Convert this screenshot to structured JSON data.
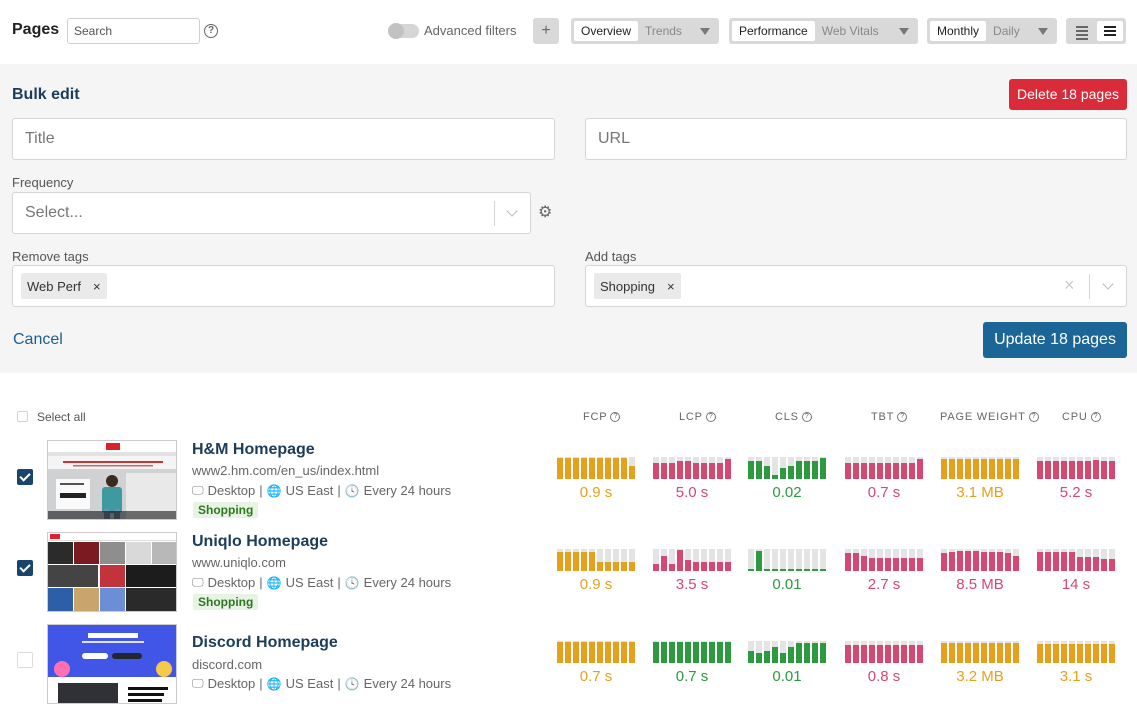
{
  "header": {
    "title": "Pages",
    "search_placeholder": "Search",
    "help": "?",
    "advanced_filters_label": "Advanced filters",
    "add_label": "+",
    "view_tabs": [
      "Overview",
      "Trends"
    ],
    "metric_tabs": [
      "Performance",
      "Web Vitals"
    ],
    "interval_tabs": [
      "Monthly",
      "Daily"
    ]
  },
  "bulk_edit": {
    "title": "Bulk edit",
    "delete_label": "Delete 18 pages",
    "title_placeholder": "Title",
    "url_placeholder": "URL",
    "frequency_label": "Frequency",
    "frequency_placeholder": "Select...",
    "remove_tags_label": "Remove tags",
    "remove_tags": [
      "Web Perf"
    ],
    "add_tags_label": "Add tags",
    "add_tags": [
      "Shopping"
    ],
    "cancel_label": "Cancel",
    "update_label": "Update 18 pages"
  },
  "list": {
    "select_all_label": "Select all",
    "columns": [
      "FCP",
      "LCP",
      "CLS",
      "TBT",
      "PAGE WEIGHT",
      "CPU"
    ],
    "pages": [
      {
        "name": "H&M Homepage",
        "url": "www2.hm.com/en_us/index.html",
        "device": "Desktop",
        "location": "US East",
        "frequency": "Every 24 hours",
        "tag": "Shopping",
        "checked": true,
        "metrics": [
          {
            "value": "0.9 s",
            "color": "#e5a11d",
            "fill": [
              0.95,
              0.95,
              0.95,
              0.95,
              0.95,
              0.95,
              0.95,
              0.95,
              0.95,
              0.6
            ]
          },
          {
            "value": "5.0 s",
            "color": "#d54872",
            "fill": [
              0.75,
              0.75,
              0.75,
              0.8,
              0.8,
              0.75,
              0.75,
              0.75,
              0.75,
              0.9
            ]
          },
          {
            "value": "0.02",
            "color": "#2d9a3f",
            "fill": [
              0.8,
              0.8,
              0.6,
              0.2,
              0.5,
              0.6,
              0.8,
              0.8,
              0.8,
              0.95
            ]
          },
          {
            "value": "0.7 s",
            "color": "#d54872",
            "fill": [
              0.75,
              0.75,
              0.75,
              0.75,
              0.75,
              0.75,
              0.75,
              0.75,
              0.75,
              0.9
            ]
          },
          {
            "value": "3.1 MB",
            "color": "#e5a11d",
            "fill": [
              0.9,
              0.9,
              0.9,
              0.9,
              0.9,
              0.9,
              0.9,
              0.9,
              0.9,
              0.9
            ]
          },
          {
            "value": "5.2 s",
            "color": "#d54872",
            "fill": [
              0.8,
              0.8,
              0.8,
              0.8,
              0.8,
              0.8,
              0.8,
              0.85,
              0.8,
              0.8
            ]
          }
        ]
      },
      {
        "name": "Uniqlo Homepage",
        "url": "www.uniqlo.com",
        "device": "Desktop",
        "location": "US East",
        "frequency": "Every 24 hours",
        "tag": "Shopping",
        "checked": true,
        "metrics": [
          {
            "value": "0.9 s",
            "color": "#e5a11d",
            "fill": [
              0.85,
              0.85,
              0.85,
              0.85,
              0.85,
              0.4,
              0.4,
              0.4,
              0.4,
              0.4
            ]
          },
          {
            "value": "3.5 s",
            "color": "#d54872",
            "fill": [
              0.3,
              0.7,
              0.3,
              0.95,
              0.5,
              0.4,
              0.4,
              0.4,
              0.4,
              0.4
            ]
          },
          {
            "value": "0.01",
            "color": "#2d9a3f",
            "fill": [
              0.1,
              0.9,
              0.1,
              0.1,
              0.1,
              0.1,
              0.1,
              0.1,
              0.1,
              0.1
            ]
          },
          {
            "value": "2.7 s",
            "color": "#d54872",
            "fill": [
              0.8,
              0.8,
              0.7,
              0.6,
              0.6,
              0.6,
              0.6,
              0.6,
              0.6,
              0.6
            ]
          },
          {
            "value": "8.5 MB",
            "color": "#d54872",
            "fill": [
              0.8,
              0.85,
              0.9,
              0.9,
              0.9,
              0.85,
              0.85,
              0.85,
              0.8,
              0.7
            ]
          },
          {
            "value": "14 s",
            "color": "#d54872",
            "fill": [
              0.85,
              0.85,
              0.85,
              0.85,
              0.85,
              0.65,
              0.65,
              0.65,
              0.55,
              0.55
            ]
          }
        ]
      },
      {
        "name": "Discord Homepage",
        "url": "discord.com",
        "device": "Desktop",
        "location": "US East",
        "frequency": "Every 24 hours",
        "tag": "",
        "checked": false,
        "metrics": [
          {
            "value": "0.7 s",
            "color": "#e5a11d",
            "fill": [
              0.95,
              0.95,
              0.95,
              0.95,
              0.95,
              0.95,
              0.95,
              0.95,
              0.95,
              0.95
            ]
          },
          {
            "value": "0.7 s",
            "color": "#2d9a3f",
            "fill": [
              0.95,
              0.95,
              0.95,
              0.95,
              0.95,
              0.95,
              0.95,
              0.95,
              0.95,
              0.95
            ]
          },
          {
            "value": "0.01",
            "color": "#2d9a3f",
            "fill": [
              0.55,
              0.45,
              0.55,
              0.75,
              0.45,
              0.75,
              0.9,
              0.9,
              0.9,
              0.9
            ]
          },
          {
            "value": "0.8 s",
            "color": "#d54872",
            "fill": [
              0.8,
              0.8,
              0.8,
              0.8,
              0.8,
              0.8,
              0.8,
              0.8,
              0.8,
              0.8
            ]
          },
          {
            "value": "3.2 MB",
            "color": "#e5a11d",
            "fill": [
              0.9,
              0.9,
              0.9,
              0.9,
              0.9,
              0.9,
              0.9,
              0.9,
              0.9,
              0.9
            ]
          },
          {
            "value": "3.1 s",
            "color": "#e5a11d",
            "fill": [
              0.85,
              0.85,
              0.85,
              0.85,
              0.85,
              0.85,
              0.85,
              0.85,
              0.85,
              0.85
            ]
          }
        ]
      }
    ]
  },
  "colors": {
    "accent": "#1b6597",
    "danger": "#d92b3a",
    "good": "#2d9a3f",
    "warn": "#e5a11d",
    "bad": "#d54872"
  },
  "icons": {
    "monitor": "monitor-icon",
    "globe": "globe-icon",
    "clock": "clock-icon",
    "gear": "gear-icon"
  }
}
